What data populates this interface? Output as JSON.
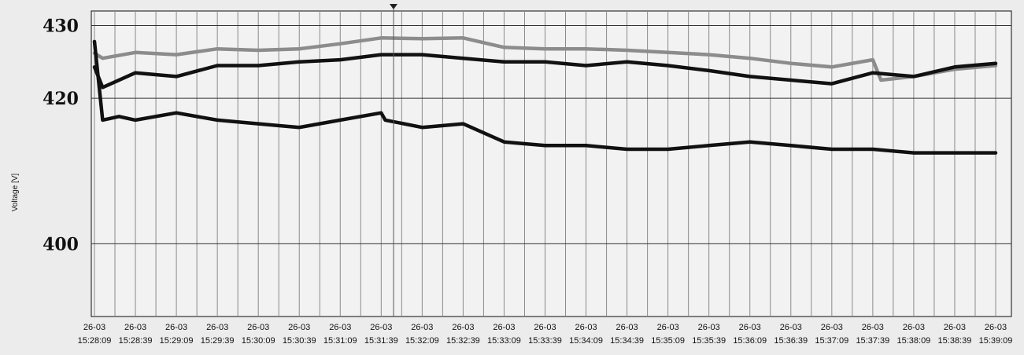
{
  "chart_data": {
    "type": "line",
    "ylabel": "Voltage [V]",
    "ylim": [
      390,
      432
    ],
    "y_ticks": [
      400,
      420,
      430
    ],
    "grid": true,
    "x_ticks": [
      {
        "date": "26-03",
        "time": "15:28:09"
      },
      {
        "date": "26-03",
        "time": "15:28:39"
      },
      {
        "date": "26-03",
        "time": "15:29:09"
      },
      {
        "date": "26-03",
        "time": "15:29:39"
      },
      {
        "date": "26-03",
        "time": "15:30:09"
      },
      {
        "date": "26-03",
        "time": "15:30:39"
      },
      {
        "date": "26-03",
        "time": "15:31:09"
      },
      {
        "date": "26-03",
        "time": "15:31:39"
      },
      {
        "date": "26-03",
        "time": "15:32:09"
      },
      {
        "date": "26-03",
        "time": "15:32:39"
      },
      {
        "date": "26-03",
        "time": "15:33:09"
      },
      {
        "date": "26-03",
        "time": "15:33:39"
      },
      {
        "date": "26-03",
        "time": "15:34:09"
      },
      {
        "date": "26-03",
        "time": "15:34:39"
      },
      {
        "date": "26-03",
        "time": "15:35:09"
      },
      {
        "date": "26-03",
        "time": "15:35:39"
      },
      {
        "date": "26-03",
        "time": "15:36:09"
      },
      {
        "date": "26-03",
        "time": "15:36:39"
      },
      {
        "date": "26-03",
        "time": "15:37:09"
      },
      {
        "date": "26-03",
        "time": "15:37:39"
      },
      {
        "date": "26-03",
        "time": "15:38:09"
      },
      {
        "date": "26-03",
        "time": "15:38:39"
      },
      {
        "date": "26-03",
        "time": "15:39:09"
      }
    ],
    "x_range": [
      "15:28:09",
      "15:39:09"
    ],
    "series": [
      {
        "color": "#8c8c8c",
        "x": [
          "15:28:09",
          "15:28:15",
          "15:28:39",
          "15:29:09",
          "15:29:39",
          "15:30:09",
          "15:30:39",
          "15:31:09",
          "15:31:39",
          "15:32:09",
          "15:32:39",
          "15:33:09",
          "15:33:39",
          "15:34:09",
          "15:34:39",
          "15:35:09",
          "15:35:39",
          "15:36:09",
          "15:36:39",
          "15:37:09",
          "15:37:39",
          "15:37:45",
          "15:38:09",
          "15:38:39",
          "15:39:09"
        ],
        "y": [
          426.2,
          425.5,
          426.3,
          426.0,
          426.8,
          426.6,
          426.8,
          427.5,
          428.3,
          428.2,
          428.3,
          427.0,
          426.8,
          426.8,
          426.6,
          426.3,
          426.0,
          425.5,
          424.8,
          424.3,
          425.3,
          422.5,
          423.0,
          424.0,
          424.5
        ]
      },
      {
        "color": "#111111",
        "x": [
          "15:28:09",
          "15:28:15",
          "15:28:39",
          "15:29:09",
          "15:29:39",
          "15:30:09",
          "15:30:39",
          "15:31:09",
          "15:31:39",
          "15:32:09",
          "15:32:39",
          "15:33:09",
          "15:33:39",
          "15:34:09",
          "15:34:39",
          "15:35:09",
          "15:35:39",
          "15:36:09",
          "15:36:39",
          "15:37:09",
          "15:37:39",
          "15:38:09",
          "15:38:39",
          "15:39:09"
        ],
        "y": [
          424.3,
          421.5,
          423.5,
          423.0,
          424.5,
          424.5,
          425.0,
          425.3,
          426.0,
          426.0,
          425.5,
          425.0,
          425.0,
          424.5,
          425.0,
          424.5,
          423.8,
          423.0,
          422.5,
          422.0,
          423.5,
          423.0,
          424.3,
          424.8
        ]
      },
      {
        "color": "#111111",
        "x": [
          "15:28:09",
          "15:28:15",
          "15:28:27",
          "15:28:39",
          "15:29:09",
          "15:29:39",
          "15:30:09",
          "15:30:39",
          "15:31:09",
          "15:31:39",
          "15:31:42",
          "15:32:09",
          "15:32:39",
          "15:33:09",
          "15:33:39",
          "15:34:09",
          "15:34:39",
          "15:35:09",
          "15:35:39",
          "15:36:09",
          "15:36:39",
          "15:37:09",
          "15:37:39",
          "15:38:09",
          "15:38:39",
          "15:39:09"
        ],
        "y": [
          427.8,
          417.0,
          417.5,
          417.0,
          418.0,
          417.0,
          416.5,
          416.0,
          417.0,
          418.0,
          417.0,
          416.0,
          416.5,
          414.0,
          413.5,
          413.5,
          413.0,
          413.0,
          413.5,
          414.0,
          413.5,
          413.0,
          413.0,
          412.5,
          412.5,
          412.5
        ]
      }
    ]
  }
}
